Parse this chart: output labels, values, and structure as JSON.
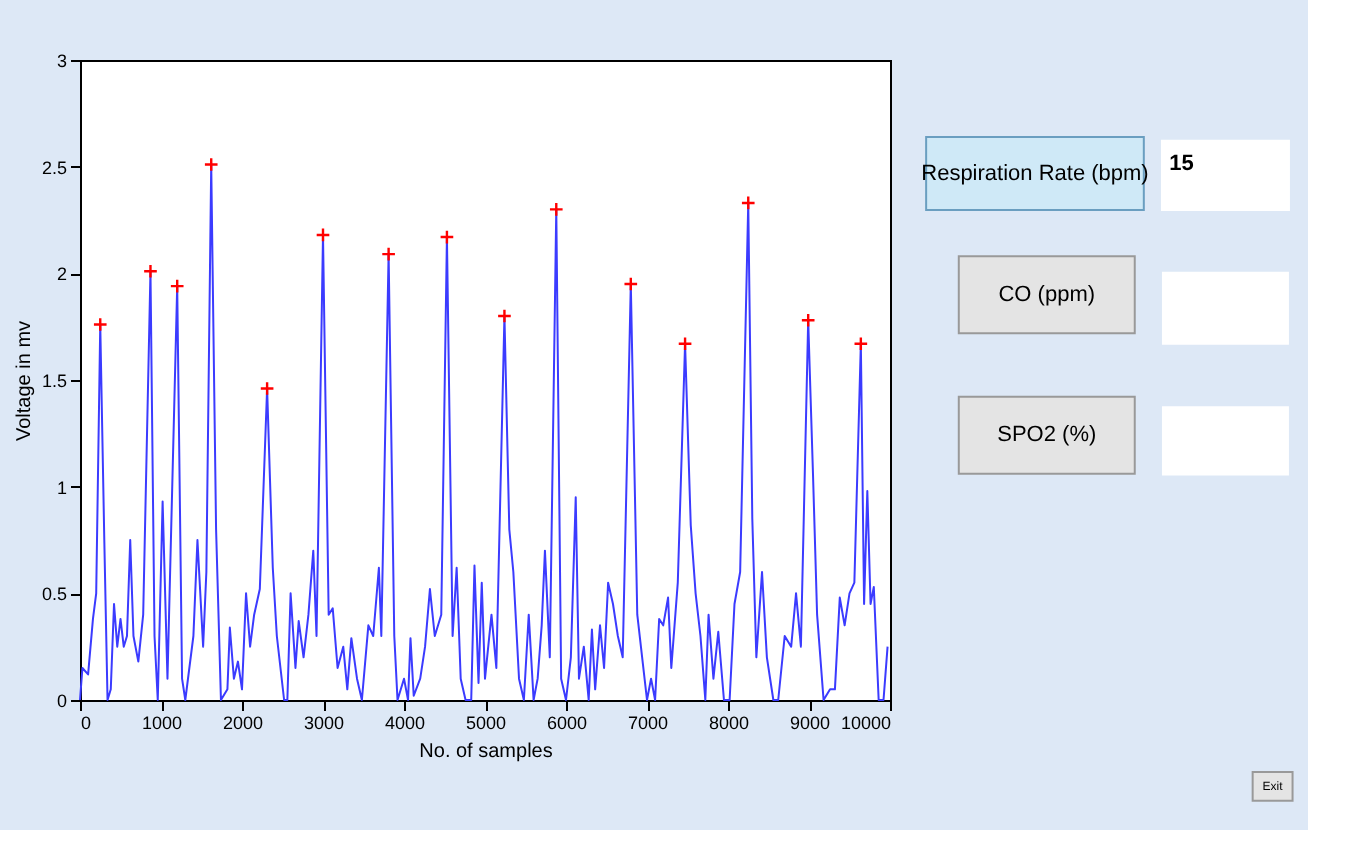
{
  "chart_data": [
    {
      "type": "line",
      "xlabel": "No. of samples",
      "ylabel": "Voltage in mv",
      "xlim": [
        0,
        10000
      ],
      "xticks": [
        0,
        1000,
        2000,
        3000,
        4000,
        5000,
        6000,
        7000,
        8000,
        9000,
        10000
      ],
      "ylim": [
        0,
        3
      ],
      "yticks": [
        0,
        0.5,
        1,
        1.5,
        2,
        2.5,
        3
      ],
      "grid": false,
      "series": [
        {
          "type": "line",
          "color": "#3b3bff",
          "marker": "none",
          "line_style": "solid",
          "x": [
            0,
            30,
            100,
            160,
            200,
            250,
            300,
            340,
            380,
            420,
            460,
            500,
            540,
            580,
            620,
            660,
            720,
            780,
            870,
            920,
            960,
            1020,
            1080,
            1200,
            1260,
            1300,
            1400,
            1450,
            1520,
            1560,
            1620,
            1680,
            1740,
            1820,
            1850,
            1900,
            1950,
            2000,
            2050,
            2100,
            2150,
            2220,
            2310,
            2380,
            2430,
            2520,
            2560,
            2600,
            2660,
            2700,
            2760,
            2820,
            2880,
            2920,
            3000,
            3070,
            3120,
            3180,
            3250,
            3300,
            3350,
            3420,
            3480,
            3560,
            3620,
            3690,
            3720,
            3810,
            3880,
            3920,
            4000,
            4050,
            4080,
            4120,
            4200,
            4260,
            4320,
            4380,
            4460,
            4530,
            4600,
            4650,
            4700,
            4760,
            4830,
            4870,
            4920,
            4960,
            5000,
            5080,
            5140,
            5240,
            5300,
            5350,
            5420,
            5480,
            5540,
            5600,
            5650,
            5700,
            5740,
            5800,
            5880,
            5940,
            6000,
            6060,
            6120,
            6160,
            6220,
            6280,
            6320,
            6360,
            6420,
            6470,
            6520,
            6580,
            6640,
            6700,
            6800,
            6880,
            6940,
            7000,
            7050,
            7100,
            7150,
            7200,
            7260,
            7300,
            7380,
            7470,
            7540,
            7600,
            7660,
            7720,
            7760,
            7820,
            7880,
            7950,
            8020,
            8080,
            8150,
            8250,
            8300,
            8350,
            8420,
            8480,
            8560,
            8620,
            8700,
            8780,
            8840,
            8900,
            8990,
            9050,
            9100,
            9180,
            9260,
            9320,
            9380,
            9440,
            9500,
            9560,
            9640,
            9680,
            9720,
            9760,
            9800,
            9860,
            9920,
            9970
          ],
          "values": [
            0.0,
            0.15,
            0.12,
            0.38,
            0.5,
            1.76,
            0.75,
            0.0,
            0.05,
            0.45,
            0.25,
            0.38,
            0.25,
            0.3,
            0.75,
            0.3,
            0.18,
            0.4,
            2.01,
            0.3,
            0.0,
            0.93,
            0.1,
            1.94,
            0.1,
            0.0,
            0.3,
            0.75,
            0.25,
            0.6,
            2.51,
            0.8,
            0.0,
            0.05,
            0.34,
            0.1,
            0.18,
            0.05,
            0.5,
            0.25,
            0.4,
            0.52,
            1.46,
            0.62,
            0.3,
            0.0,
            0.0,
            0.5,
            0.15,
            0.37,
            0.2,
            0.4,
            0.7,
            0.3,
            2.18,
            0.4,
            0.43,
            0.15,
            0.25,
            0.05,
            0.29,
            0.1,
            0.0,
            0.35,
            0.3,
            0.62,
            0.3,
            2.09,
            0.3,
            0.0,
            0.1,
            0.0,
            0.29,
            0.02,
            0.1,
            0.25,
            0.52,
            0.3,
            0.4,
            2.17,
            0.3,
            0.62,
            0.1,
            0.0,
            0.0,
            0.63,
            0.08,
            0.55,
            0.1,
            0.4,
            0.15,
            1.8,
            0.8,
            0.6,
            0.1,
            0.0,
            0.4,
            0.0,
            0.1,
            0.35,
            0.7,
            0.2,
            2.3,
            0.1,
            0.0,
            0.2,
            0.95,
            0.1,
            0.25,
            0.0,
            0.33,
            0.05,
            0.35,
            0.15,
            0.55,
            0.45,
            0.3,
            0.2,
            1.95,
            0.4,
            0.2,
            0.0,
            0.1,
            0.0,
            0.38,
            0.35,
            0.48,
            0.15,
            0.55,
            1.67,
            0.82,
            0.5,
            0.3,
            0.0,
            0.4,
            0.1,
            0.32,
            0.0,
            0.0,
            0.45,
            0.6,
            2.33,
            0.85,
            0.2,
            0.6,
            0.2,
            0.0,
            0.0,
            0.3,
            0.25,
            0.5,
            0.25,
            1.78,
            1.05,
            0.4,
            0.0,
            0.05,
            0.05,
            0.48,
            0.35,
            0.5,
            0.55,
            1.67,
            0.45,
            0.98,
            0.45,
            0.53,
            0.0,
            0.0,
            0.25
          ]
        },
        {
          "type": "scatter",
          "color": "#ff0000",
          "marker": "cross",
          "x": [
            250,
            870,
            1200,
            1620,
            2310,
            3000,
            3810,
            4530,
            5240,
            5880,
            6800,
            7470,
            8250,
            8990,
            9640
          ],
          "values": [
            1.76,
            2.01,
            1.94,
            2.51,
            1.46,
            2.18,
            2.09,
            2.17,
            1.8,
            2.3,
            1.95,
            1.67,
            2.33,
            1.78,
            1.67
          ]
        }
      ]
    },
    {
      "type": "other",
      "annotations": [
        "Respiration Rate (bpm)",
        "15",
        "CO  (ppm)",
        "SPO2 (%)",
        "Exit"
      ]
    }
  ]
}
